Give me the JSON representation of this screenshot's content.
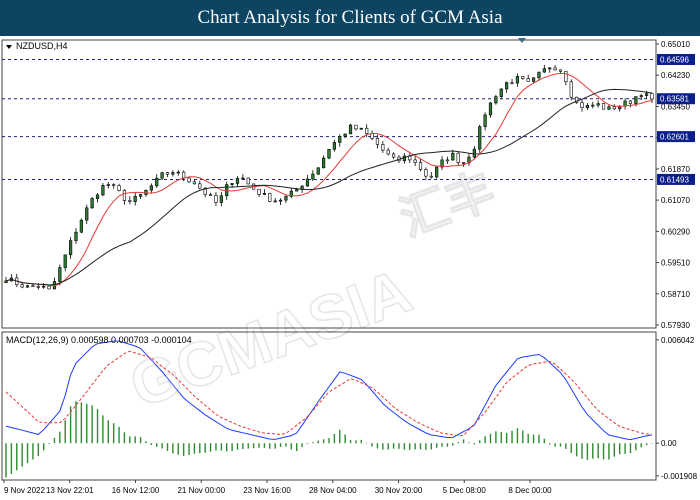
{
  "banner": {
    "title": "Chart Analysis for Clients of GCM Asia"
  },
  "chart_data": {
    "type": "candlestick",
    "symbol_label": "NZDUSD,H4",
    "price_axis": {
      "ylim": [
        0.5765,
        0.651
      ],
      "ticks": [
        "0.65010",
        "0.64230",
        "0.63450",
        "0.62670",
        "0.61870",
        "0.61070",
        "0.60290",
        "0.59510",
        "0.58710",
        "0.57930"
      ]
    },
    "horizontal_levels": [
      {
        "label": "0.64596",
        "value": 0.64596
      },
      {
        "label": "0.63581",
        "value": 0.63581
      },
      {
        "label": "0.62601",
        "value": 0.62601
      },
      {
        "label": "0.61493",
        "value": 0.61493
      }
    ],
    "time_labels": [
      "9 Nov 2022",
      "13 Nov 22:01",
      "16 Nov 12:00",
      "21 Nov 00:00",
      "23 Nov 16:00",
      "28 Nov 04:00",
      "30 Nov 20:00",
      "5 Dec 08:00",
      "8 Dec 00:00"
    ],
    "close_path": [
      [
        0,
        0.5895
      ],
      [
        1,
        0.588
      ],
      [
        2,
        0.587
      ],
      [
        3,
        0.5875
      ],
      [
        4,
        0.586
      ],
      [
        5,
        0.593
      ],
      [
        6,
        0.6
      ],
      [
        7,
        0.606
      ],
      [
        8,
        0.611
      ],
      [
        9,
        0.614
      ],
      [
        10,
        0.612
      ],
      [
        11,
        0.609
      ],
      [
        12,
        0.6105
      ],
      [
        13,
        0.613
      ],
      [
        14,
        0.616
      ],
      [
        15,
        0.617
      ],
      [
        16,
        0.6155
      ],
      [
        17,
        0.614
      ],
      [
        18,
        0.611
      ],
      [
        19,
        0.6085
      ],
      [
        20,
        0.614
      ],
      [
        21,
        0.616
      ],
      [
        22,
        0.613
      ],
      [
        23,
        0.611
      ],
      [
        24,
        0.6095
      ],
      [
        25,
        0.61
      ],
      [
        26,
        0.612
      ],
      [
        27,
        0.615
      ],
      [
        28,
        0.618
      ],
      [
        29,
        0.623
      ],
      [
        30,
        0.626
      ],
      [
        31,
        0.6285
      ],
      [
        32,
        0.6275
      ],
      [
        33,
        0.625
      ],
      [
        34,
        0.622
      ],
      [
        35,
        0.6195
      ],
      [
        36,
        0.621
      ],
      [
        37,
        0.6185
      ],
      [
        38,
        0.615
      ],
      [
        39,
        0.619
      ],
      [
        40,
        0.6215
      ],
      [
        41,
        0.619
      ],
      [
        42,
        0.623
      ],
      [
        43,
        0.632
      ],
      [
        44,
        0.637
      ],
      [
        45,
        0.64
      ],
      [
        46,
        0.641
      ],
      [
        47,
        0.6395
      ],
      [
        48,
        0.6425
      ],
      [
        49,
        0.6445
      ],
      [
        50,
        0.643
      ],
      [
        51,
        0.635
      ],
      [
        52,
        0.6335
      ],
      [
        53,
        0.6345
      ],
      [
        54,
        0.633
      ],
      [
        55,
        0.634
      ],
      [
        56,
        0.635
      ],
      [
        57,
        0.6375
      ],
      [
        58,
        0.6355
      ]
    ],
    "macd": {
      "label": "MACD(12,26,9) 0.000598 0.000703 -0.000104",
      "ylim": [
        -0.00215,
        0.0065
      ],
      "ticks": [
        "0.006042",
        "0.00",
        "-0.001908"
      ],
      "macd_line": [
        [
          0,
          0.001
        ],
        [
          3,
          0.0005
        ],
        [
          5,
          0.002
        ],
        [
          6,
          0.0045
        ],
        [
          8,
          0.0058
        ],
        [
          10,
          0.006
        ],
        [
          12,
          0.0056
        ],
        [
          14,
          0.0042
        ],
        [
          16,
          0.0026
        ],
        [
          18,
          0.0016
        ],
        [
          20,
          0.0008
        ],
        [
          22,
          0.0005
        ],
        [
          24,
          0.0002
        ],
        [
          26,
          0.0005
        ],
        [
          28,
          0.0024
        ],
        [
          30,
          0.0042
        ],
        [
          32,
          0.0037
        ],
        [
          34,
          0.0022
        ],
        [
          36,
          0.0012
        ],
        [
          38,
          0.0005
        ],
        [
          40,
          0.0003
        ],
        [
          42,
          0.001
        ],
        [
          44,
          0.0034
        ],
        [
          46,
          0.005
        ],
        [
          48,
          0.0052
        ],
        [
          50,
          0.004
        ],
        [
          52,
          0.0018
        ],
        [
          54,
          0.0005
        ],
        [
          56,
          0.0002
        ],
        [
          58,
          0.0005
        ]
      ],
      "signal_line": [
        [
          0,
          0.003
        ],
        [
          3,
          0.0012
        ],
        [
          5,
          0.0012
        ],
        [
          7,
          0.0028
        ],
        [
          9,
          0.0045
        ],
        [
          11,
          0.0054
        ],
        [
          13,
          0.005
        ],
        [
          15,
          0.004
        ],
        [
          17,
          0.0027
        ],
        [
          19,
          0.0016
        ],
        [
          21,
          0.001
        ],
        [
          23,
          0.0006
        ],
        [
          25,
          0.0005
        ],
        [
          27,
          0.0015
        ],
        [
          29,
          0.003
        ],
        [
          31,
          0.0038
        ],
        [
          33,
          0.0032
        ],
        [
          35,
          0.002
        ],
        [
          37,
          0.0012
        ],
        [
          39,
          0.0006
        ],
        [
          41,
          0.0004
        ],
        [
          43,
          0.0018
        ],
        [
          45,
          0.0036
        ],
        [
          47,
          0.0046
        ],
        [
          49,
          0.0048
        ],
        [
          51,
          0.0036
        ],
        [
          53,
          0.002
        ],
        [
          55,
          0.001
        ],
        [
          57,
          0.0006
        ],
        [
          58,
          0.0005
        ]
      ]
    },
    "colors": {
      "bull": "#2e7d32",
      "bear": "#ffffff",
      "ma_fast": "#e53935",
      "ma_slow": "#222222",
      "level": "#1a237e",
      "macd": "#1e3cff",
      "signal": "#e53935",
      "hist": "#2e8b2e",
      "banner": "#0c4462"
    }
  }
}
